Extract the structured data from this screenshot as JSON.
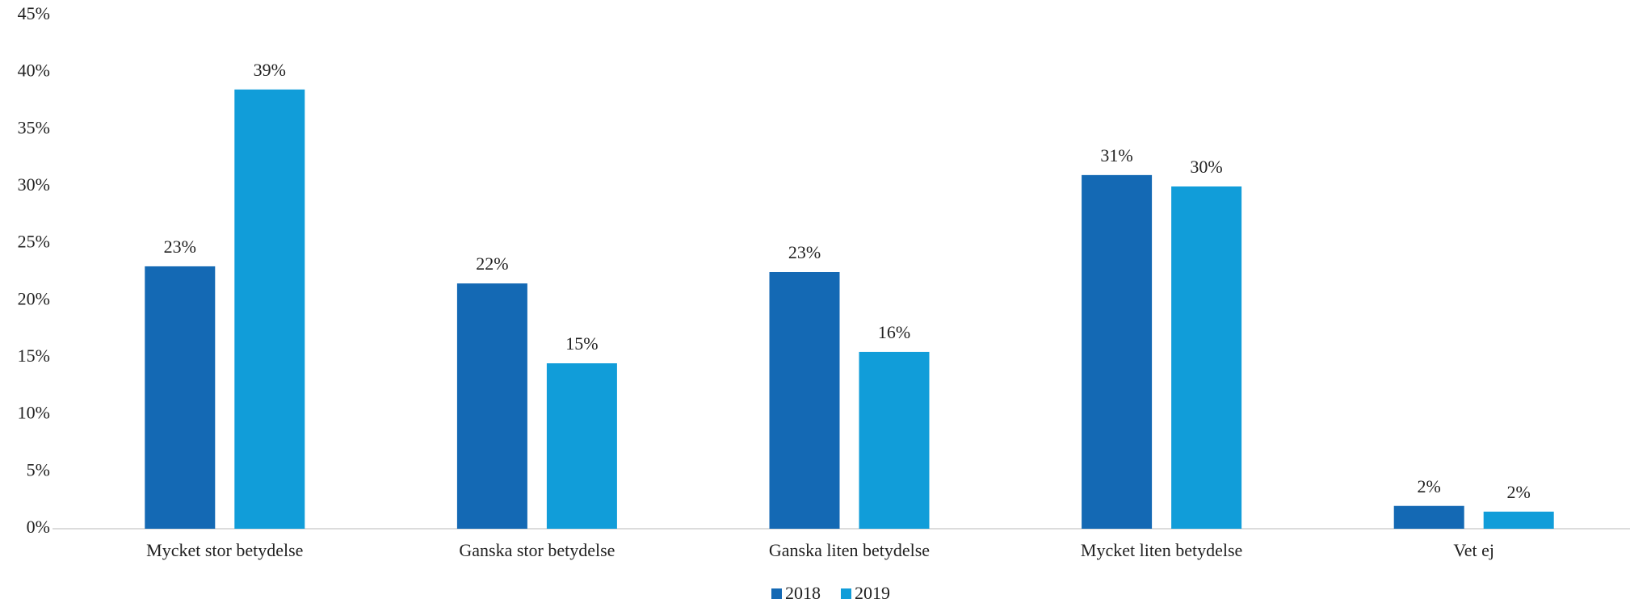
{
  "chart_data": {
    "type": "bar",
    "categories": [
      "Mycket stor betydelse",
      "Ganska stor betydelse",
      "Ganska liten betydelse",
      "Mycket liten betydelse",
      "Vet ej"
    ],
    "series": [
      {
        "name": "2018",
        "color": "#1469b4",
        "values": [
          23,
          21.5,
          22.5,
          31,
          2
        ],
        "value_labels": [
          "23%",
          "22%",
          "23%",
          "31%",
          "2%"
        ]
      },
      {
        "name": "2019",
        "color": "#119dd9",
        "values": [
          38.5,
          14.5,
          15.5,
          30,
          1.5
        ],
        "value_labels": [
          "39%",
          "15%",
          "16%",
          "30%",
          "2%"
        ]
      }
    ],
    "ylim": [
      0,
      45
    ],
    "yticks": [
      {
        "value": 0,
        "label": "0%"
      },
      {
        "value": 5,
        "label": "5%"
      },
      {
        "value": 10,
        "label": "10%"
      },
      {
        "value": 15,
        "label": "15%"
      },
      {
        "value": 20,
        "label": "20%"
      },
      {
        "value": 25,
        "label": "25%"
      },
      {
        "value": 30,
        "label": "30%"
      },
      {
        "value": 35,
        "label": "35%"
      },
      {
        "value": 40,
        "label": "40%"
      },
      {
        "value": 45,
        "label": "45%"
      }
    ],
    "grid": false,
    "legend": "bottom"
  }
}
